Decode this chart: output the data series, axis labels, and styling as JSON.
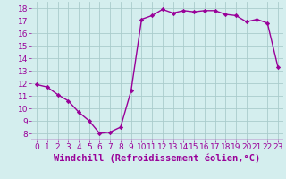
{
  "hours": [
    0,
    1,
    2,
    3,
    4,
    5,
    6,
    7,
    8,
    9,
    10,
    11,
    12,
    13,
    14,
    15,
    16,
    17,
    18,
    19,
    20,
    21,
    22,
    23
  ],
  "values": [
    11.9,
    11.7,
    11.1,
    10.6,
    9.7,
    9.0,
    8.0,
    8.1,
    8.5,
    11.4,
    17.1,
    17.4,
    17.9,
    17.6,
    17.8,
    17.7,
    17.8,
    17.8,
    17.5,
    17.4,
    16.9,
    17.1,
    16.8,
    13.3
  ],
  "line_color": "#990099",
  "marker": "D",
  "marker_size": 2.2,
  "bg_color": "#d4eeee",
  "grid_color": "#aacccc",
  "xlabel": "Windchill (Refroidissement éolien,°C)",
  "xlabel_fontsize": 7.5,
  "ylim": [
    7.5,
    18.5
  ],
  "yticks": [
    8,
    9,
    10,
    11,
    12,
    13,
    14,
    15,
    16,
    17,
    18
  ],
  "xticks": [
    0,
    1,
    2,
    3,
    4,
    5,
    6,
    7,
    8,
    9,
    10,
    11,
    12,
    13,
    14,
    15,
    16,
    17,
    18,
    19,
    20,
    21,
    22,
    23
  ],
  "tick_fontsize": 6.5,
  "line_width": 1.0
}
